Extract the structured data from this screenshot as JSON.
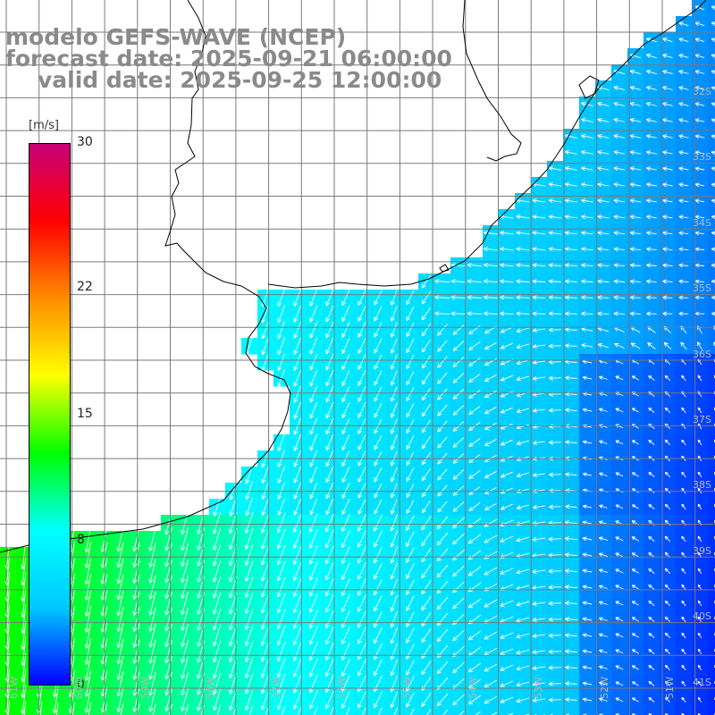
{
  "title": {
    "line1": "modelo GEFS-WAVE (NCEP)",
    "line2": "forecast date: 2025-09-21 06:00:00",
    "line3": "valid date: 2025-09-25 12:00:00"
  },
  "colorbar": {
    "unit": "[m/s]",
    "ticks": [
      "30",
      "22",
      "15",
      "8",
      "0"
    ],
    "tick_values": [
      30,
      22,
      15,
      8,
      0
    ],
    "min": 0,
    "max": 30,
    "colors": [
      "#0000ff",
      "#00c8ff",
      "#00ffff",
      "#00ff00",
      "#ffff00",
      "#ff8c00",
      "#ff0000",
      "#c80078"
    ]
  },
  "lat_labels": [
    "32S",
    "33S",
    "34S",
    "35S",
    "36S",
    "37S",
    "38S",
    "39S",
    "40S",
    "41S"
  ],
  "lon_labels": [
    "61W",
    "60W",
    "59W",
    "58W",
    "57W",
    "56W",
    "55W",
    "54W",
    "53W",
    "52W",
    "51W"
  ],
  "map": {
    "field": "wind speed",
    "land_color": "#ffffff",
    "grid_color": "#7a7a7a",
    "arrow_color": "#ffffff"
  }
}
